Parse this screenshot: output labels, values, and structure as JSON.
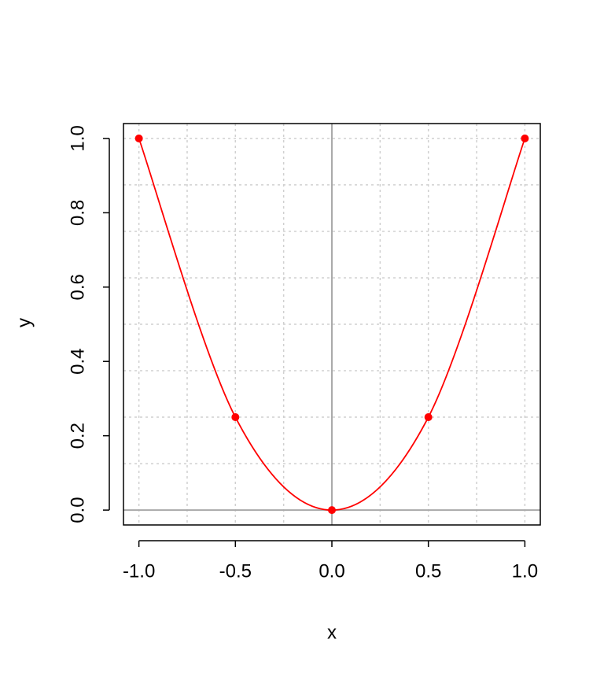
{
  "chart_data": {
    "type": "line",
    "x_label": "x",
    "y_label": "y",
    "x": [
      -1,
      -0.5,
      0,
      0.5,
      1
    ],
    "series": [
      {
        "color": "#ff0000",
        "values": [
          1,
          0.25,
          0,
          0.25,
          1
        ]
      }
    ],
    "smooth": true,
    "markers": true,
    "xlim": [
      -1.08,
      1.08
    ],
    "ylim": [
      -0.04,
      1.04
    ],
    "xticks": [
      {
        "value": -1,
        "label": "-1.0"
      },
      -0.5,
      {
        "value": 0,
        "label": "0.0"
      },
      0.5,
      {
        "value": 1,
        "label": "1.0"
      }
    ],
    "yticks": [
      {
        "value": 0,
        "label": "0.0"
      },
      0.2,
      0.4,
      0.6,
      0.8,
      {
        "value": 1,
        "label": "1.0"
      }
    ],
    "xgrid": [
      -1,
      -0.75,
      -0.5,
      -0.25,
      0.25,
      0.5,
      0.75,
      1
    ],
    "ygrid": [
      0.125,
      0.25,
      0.375,
      0.5,
      0.625,
      0.75,
      0.875,
      1
    ],
    "hline": 0,
    "vline": 0
  }
}
